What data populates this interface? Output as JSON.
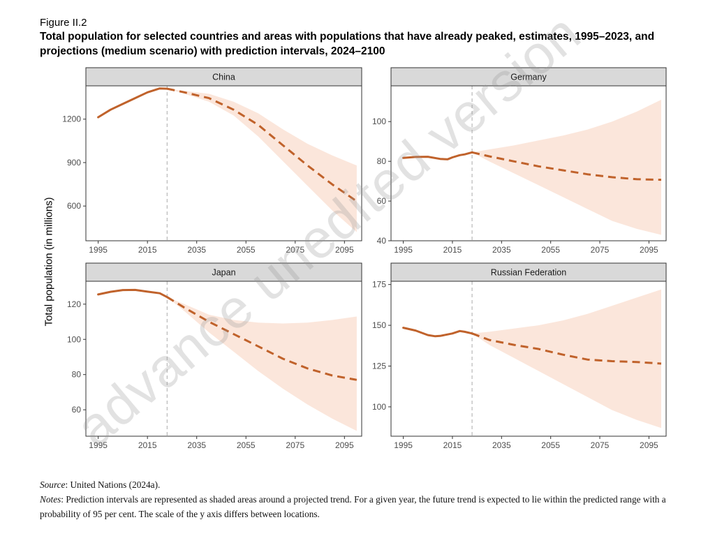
{
  "figure": {
    "label": "Figure II.2",
    "title": "Total population for selected countries and areas with populations that have already peaked, estimates, 1995–2023, and projections (medium scenario) with prediction intervals, 2024–2100",
    "y_axis_title": "Total population (in millions)",
    "watermark": "advance unedited version"
  },
  "footer": {
    "source_label": "Source",
    "source_text": ": United Nations (2024a).",
    "notes_label": "Notes",
    "notes_text": ": Prediction intervals are represented as shaded areas around a projected trend. For a given year, the future trend is expected to lie within the predicted range with a probability of 95 per cent. The scale of the y axis differs between locations."
  },
  "colors": {
    "line": "#c0622b",
    "band": "#fbe6db",
    "strip_bg": "#d9d9d9",
    "axis": "#333333",
    "divider": "#bdbdbd"
  },
  "chart_data": [
    {
      "type": "line",
      "title": "China",
      "xlabel": "",
      "ylabel": "Total population (in millions)",
      "xlim": [
        1990,
        2102
      ],
      "ylim": [
        360,
        1430
      ],
      "x_ticks": [
        1995,
        2015,
        2035,
        2055,
        2075,
        2095
      ],
      "y_ticks": [
        600,
        900,
        1200
      ],
      "divider_year": 2023,
      "estimates": {
        "x": [
          1995,
          2000,
          2005,
          2010,
          2015,
          2020,
          2023
        ],
        "y": [
          1213,
          1265,
          1305,
          1345,
          1385,
          1412,
          1410
        ]
      },
      "projection": {
        "x": [
          2023,
          2030,
          2040,
          2050,
          2060,
          2070,
          2080,
          2090,
          2100
        ],
        "y": [
          1410,
          1385,
          1345,
          1265,
          1160,
          1020,
          880,
          750,
          633
        ]
      },
      "interval": {
        "x": [
          2023,
          2030,
          2040,
          2050,
          2060,
          2070,
          2080,
          2090,
          2100
        ],
        "lower": [
          1410,
          1375,
          1320,
          1225,
          1080,
          910,
          740,
          570,
          420
        ],
        "upper": [
          1410,
          1395,
          1375,
          1320,
          1240,
          1130,
          1030,
          950,
          880
        ]
      }
    },
    {
      "type": "line",
      "title": "Germany",
      "xlabel": "",
      "ylabel": "Total population (in millions)",
      "xlim": [
        1990,
        2102
      ],
      "ylim": [
        40,
        118
      ],
      "x_ticks": [
        1995,
        2015,
        2035,
        2055,
        2075,
        2095
      ],
      "y_ticks": [
        40,
        60,
        80,
        100
      ],
      "divider_year": 2023,
      "estimates": {
        "x": [
          1995,
          2000,
          2005,
          2010,
          2013,
          2015,
          2018,
          2020,
          2023
        ],
        "y": [
          81.7,
          82.2,
          82.3,
          81.2,
          81.0,
          82.0,
          83.1,
          83.5,
          84.5
        ]
      },
      "projection": {
        "x": [
          2023,
          2030,
          2040,
          2050,
          2060,
          2070,
          2080,
          2090,
          2100
        ],
        "y": [
          84.5,
          82.5,
          80.0,
          77.5,
          75.5,
          73.5,
          72.0,
          71.0,
          70.7
        ]
      },
      "interval": {
        "x": [
          2023,
          2030,
          2040,
          2050,
          2060,
          2070,
          2080,
          2090,
          2100
        ],
        "lower": [
          84.5,
          80.0,
          74.0,
          68.0,
          62.0,
          56.0,
          50.0,
          46.0,
          43.0
        ],
        "upper": [
          84.5,
          86.0,
          88.0,
          90.5,
          93.0,
          96.0,
          100.0,
          105.0,
          111.0
        ]
      }
    },
    {
      "type": "line",
      "title": "Japan",
      "xlabel": "",
      "ylabel": "Total population (in millions)",
      "xlim": [
        1990,
        2102
      ],
      "ylim": [
        45,
        133
      ],
      "x_ticks": [
        1995,
        2015,
        2035,
        2055,
        2075,
        2095
      ],
      "y_ticks": [
        60,
        80,
        100,
        120
      ],
      "divider_year": 2023,
      "estimates": {
        "x": [
          1995,
          2000,
          2005,
          2010,
          2015,
          2020,
          2023
        ],
        "y": [
          125.5,
          127.0,
          128.0,
          128.1,
          127.1,
          126.2,
          124.0
        ]
      },
      "projection": {
        "x": [
          2023,
          2030,
          2040,
          2050,
          2060,
          2070,
          2080,
          2090,
          2100
        ],
        "y": [
          124.0,
          118.0,
          110.0,
          103.0,
          96.0,
          89.0,
          83.5,
          79.5,
          77.0
        ]
      },
      "interval": {
        "x": [
          2023,
          2030,
          2040,
          2050,
          2060,
          2070,
          2080,
          2090,
          2100
        ],
        "lower": [
          124.0,
          116.0,
          104.0,
          93.0,
          82.0,
          72.0,
          63.0,
          55.0,
          48.0
        ],
        "upper": [
          124.0,
          120.0,
          114.0,
          111.0,
          109.5,
          109.0,
          109.5,
          111.0,
          113.0
        ]
      }
    },
    {
      "type": "line",
      "title": "Russian Federation",
      "xlabel": "",
      "ylabel": "Total population (in millions)",
      "xlim": [
        1990,
        2102
      ],
      "ylim": [
        82,
        177
      ],
      "x_ticks": [
        1995,
        2015,
        2035,
        2055,
        2075,
        2095
      ],
      "y_ticks": [
        100,
        125,
        150,
        175
      ],
      "divider_year": 2023,
      "estimates": {
        "x": [
          1995,
          2000,
          2005,
          2008,
          2010,
          2015,
          2018,
          2020,
          2023
        ],
        "y": [
          148.5,
          146.8,
          144.0,
          143.3,
          143.5,
          145.0,
          146.5,
          146.0,
          145.0
        ]
      },
      "projection": {
        "x": [
          2023,
          2030,
          2040,
          2050,
          2060,
          2070,
          2080,
          2090,
          2100
        ],
        "y": [
          145.0,
          141.0,
          138.0,
          135.5,
          132.0,
          129.0,
          128.0,
          127.5,
          126.5
        ]
      },
      "interval": {
        "x": [
          2023,
          2030,
          2040,
          2050,
          2060,
          2070,
          2080,
          2090,
          2100
        ],
        "lower": [
          145.0,
          138.0,
          130.0,
          122.0,
          114.0,
          106.0,
          98.0,
          92.0,
          87.0
        ],
        "upper": [
          145.0,
          146.0,
          148.0,
          150.0,
          153.0,
          157.0,
          162.0,
          167.0,
          172.0
        ]
      }
    }
  ]
}
